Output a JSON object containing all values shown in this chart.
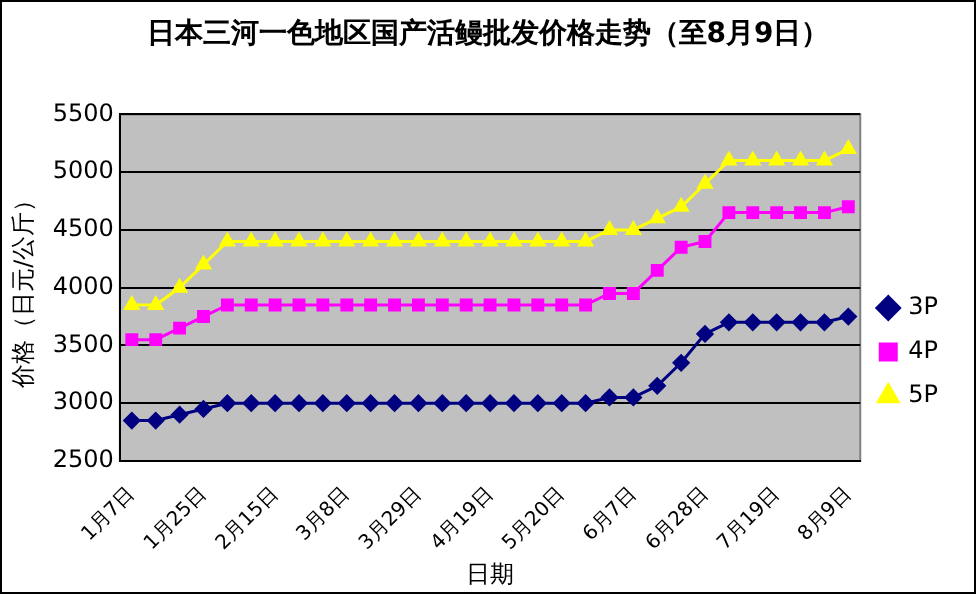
{
  "chart_data": {
    "type": "line",
    "title": "日本三河一色地区国产活鳗批发价格走势（至8月9日）",
    "xlabel": "日期",
    "ylabel": "价格（日元/公斤）",
    "categories": [
      "1月7日",
      null,
      null,
      "1月25日",
      null,
      null,
      "2月15日",
      null,
      null,
      "3月8日",
      null,
      null,
      "3月29日",
      null,
      null,
      "4月19日",
      null,
      null,
      "5月20日",
      null,
      null,
      "6月7日",
      null,
      null,
      "6月28日",
      null,
      null,
      "7月19日",
      null,
      null,
      "8月9日"
    ],
    "series": [
      {
        "name": "3P",
        "color": "#000080",
        "marker": "diamond",
        "values": [
          2850,
          2850,
          2900,
          2950,
          3000,
          3000,
          3000,
          3000,
          3000,
          3000,
          3000,
          3000,
          3000,
          3000,
          3000,
          3000,
          3000,
          3000,
          3000,
          3000,
          3050,
          3050,
          3150,
          3350,
          3600,
          3700,
          3700,
          3700,
          3700,
          3700,
          3750
        ]
      },
      {
        "name": "4P",
        "color": "#ff00ff",
        "marker": "square",
        "values": [
          3550,
          3550,
          3650,
          3750,
          3850,
          3850,
          3850,
          3850,
          3850,
          3850,
          3850,
          3850,
          3850,
          3850,
          3850,
          3850,
          3850,
          3850,
          3850,
          3850,
          3950,
          3950,
          4150,
          4350,
          4400,
          4650,
          4650,
          4650,
          4650,
          4650,
          4700
        ]
      },
      {
        "name": "5P",
        "color": "#ffff00",
        "marker": "triangle",
        "values": [
          3850,
          3850,
          4000,
          4200,
          4400,
          4400,
          4400,
          4400,
          4400,
          4400,
          4400,
          4400,
          4400,
          4400,
          4400,
          4400,
          4400,
          4400,
          4400,
          4400,
          4500,
          4500,
          4600,
          4700,
          4900,
          5100,
          5100,
          5100,
          5100,
          5100,
          5200
        ]
      }
    ],
    "ylim": [
      2500,
      5500
    ],
    "yticks": [
      2500,
      3000,
      3500,
      4000,
      4500,
      5000,
      5500
    ],
    "grid": "y",
    "legend": "right",
    "line_style": "solid"
  }
}
